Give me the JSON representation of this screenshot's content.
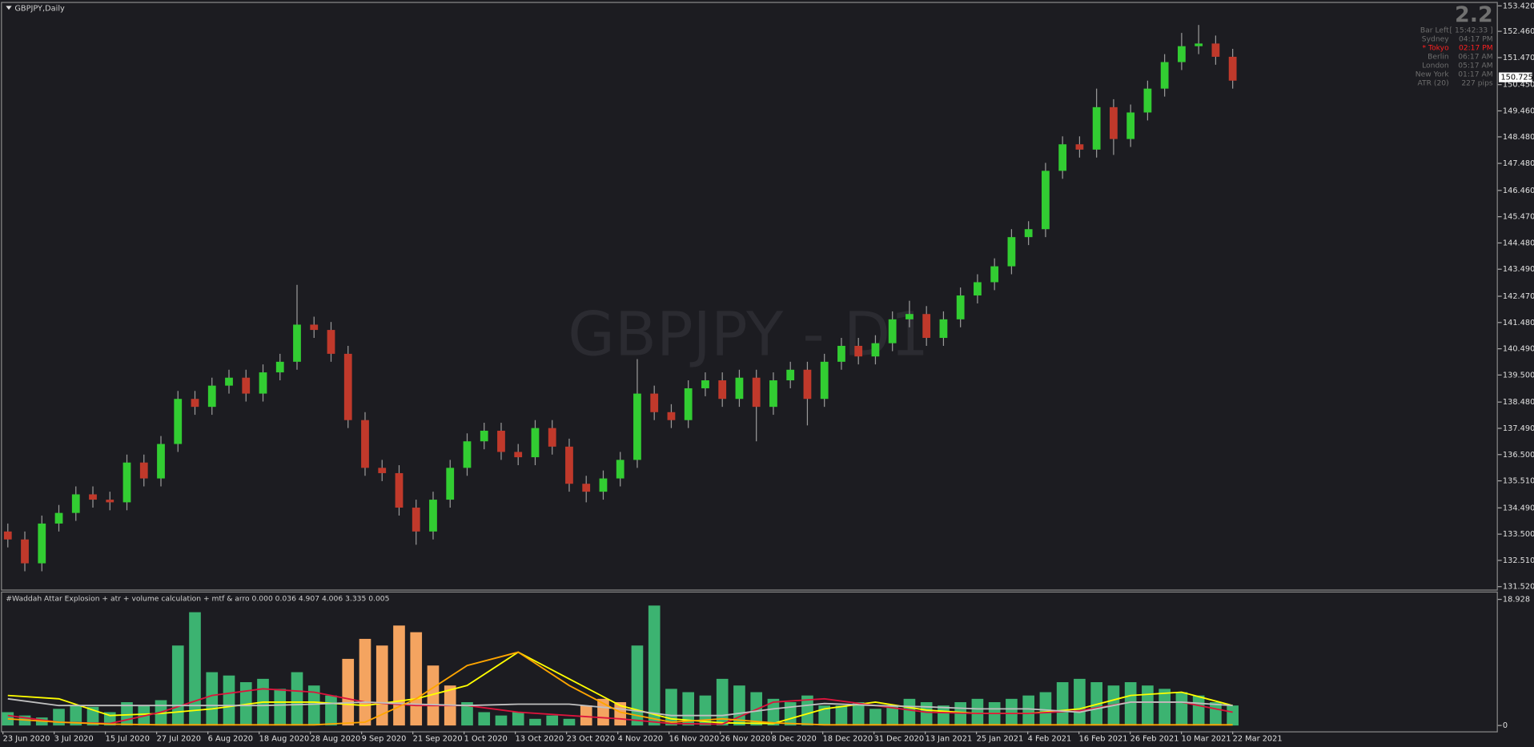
{
  "chart_data": [
    {
      "type": "candlestick",
      "title": "GBPJPY,Daily",
      "watermark": "GBPJPY - D1",
      "up_color": "#32cd32",
      "down_color": "#c0392b",
      "ylim": [
        131.52,
        153.42
      ],
      "yticks": [
        {
          "value": 153.42,
          "label": "153.420"
        },
        {
          "value": 152.46,
          "label": "152.460"
        },
        {
          "value": 151.47,
          "label": "151.470"
        },
        {
          "value": 150.45,
          "label": "150.450"
        },
        {
          "value": 149.46,
          "label": "149.460"
        },
        {
          "value": 148.48,
          "label": "148.480"
        },
        {
          "value": 147.48,
          "label": "147.480"
        },
        {
          "value": 146.46,
          "label": "146.460"
        },
        {
          "value": 145.47,
          "label": "145.470"
        },
        {
          "value": 144.48,
          "label": "144.480"
        },
        {
          "value": 143.49,
          "label": "143.490"
        },
        {
          "value": 142.47,
          "label": "142.470"
        },
        {
          "value": 141.48,
          "label": "141.480"
        },
        {
          "value": 140.49,
          "label": "140.490"
        },
        {
          "value": 139.5,
          "label": "139.500"
        },
        {
          "value": 138.48,
          "label": "138.480"
        },
        {
          "value": 137.49,
          "label": "137.490"
        },
        {
          "value": 136.5,
          "label": "136.500"
        },
        {
          "value": 135.51,
          "label": "135.510"
        },
        {
          "value": 134.49,
          "label": "134.490"
        },
        {
          "value": 133.5,
          "label": "133.500"
        },
        {
          "value": 132.51,
          "label": "132.510"
        },
        {
          "value": 131.52,
          "label": "131.520"
        }
      ],
      "current_price": 150.725,
      "x_labels": [
        "23 Jun 2020",
        "3 Jul 2020",
        "15 Jul 2020",
        "27 Jul 2020",
        "6 Aug 2020",
        "18 Aug 2020",
        "28 Aug 2020",
        "9 Sep 2020",
        "21 Sep 2020",
        "1 Oct 2020",
        "13 Oct 2020",
        "23 Oct 2020",
        "4 Nov 2020",
        "16 Nov 2020",
        "26 Nov 2020",
        "8 Dec 2020",
        "18 Dec 2020",
        "31 Dec 2020",
        "13 Jan 2021",
        "25 Jan 2021",
        "4 Feb 2021",
        "16 Feb 2021",
        "26 Feb 2021",
        "10 Mar 2021",
        "22 Mar 2021"
      ],
      "open": [
        133.6,
        133.3,
        132.4,
        133.9,
        134.3,
        135.0,
        134.8,
        134.7,
        136.2,
        135.6,
        136.9,
        138.6,
        138.3,
        139.1,
        139.4,
        138.8,
        139.6,
        140.0,
        141.4,
        141.2,
        140.3,
        137.8,
        136.0,
        135.8,
        134.5,
        133.6,
        134.8,
        136.0,
        137.0,
        137.4,
        136.6,
        136.4,
        137.5,
        136.8,
        135.4,
        135.1,
        135.6,
        136.3,
        138.8,
        138.1,
        137.8,
        139.0,
        139.3,
        138.6,
        139.4,
        138.3,
        139.3,
        139.7,
        138.6,
        140.0,
        140.6,
        140.2,
        140.7,
        141.6,
        141.8,
        140.9,
        141.6,
        142.5,
        143.0,
        143.6,
        144.7,
        145.0,
        147.2,
        148.2,
        148.0,
        149.6,
        148.4,
        149.4,
        150.3,
        151.3,
        151.9,
        152.0,
        151.5
      ],
      "high": [
        133.9,
        133.6,
        134.2,
        134.6,
        135.3,
        135.3,
        135.1,
        136.5,
        136.5,
        137.2,
        138.9,
        138.9,
        139.4,
        139.7,
        139.7,
        139.9,
        140.3,
        142.9,
        141.7,
        141.5,
        140.6,
        138.1,
        136.3,
        136.1,
        134.8,
        135.1,
        136.3,
        137.3,
        137.7,
        137.7,
        136.9,
        137.8,
        137.8,
        137.1,
        135.7,
        135.9,
        136.6,
        140.1,
        139.1,
        138.4,
        139.3,
        139.6,
        139.6,
        139.7,
        139.7,
        139.6,
        140.0,
        140.0,
        140.3,
        140.9,
        140.9,
        141.0,
        141.9,
        142.3,
        142.1,
        141.9,
        142.8,
        143.3,
        143.9,
        145.0,
        145.3,
        147.5,
        148.5,
        148.5,
        150.3,
        149.9,
        149.7,
        150.6,
        151.6,
        152.4,
        152.7,
        152.3,
        151.8
      ],
      "low": [
        133.0,
        132.1,
        132.1,
        133.6,
        134.0,
        134.5,
        134.4,
        134.4,
        135.3,
        135.3,
        136.6,
        138.0,
        138.0,
        138.8,
        138.5,
        138.5,
        139.3,
        139.7,
        140.9,
        140.0,
        137.5,
        135.7,
        135.5,
        134.2,
        133.1,
        133.3,
        134.5,
        135.7,
        136.7,
        136.3,
        136.1,
        136.1,
        136.5,
        135.1,
        134.7,
        134.8,
        135.3,
        136.0,
        137.8,
        137.5,
        137.5,
        138.7,
        138.3,
        138.3,
        137.0,
        138.0,
        139.0,
        137.6,
        138.3,
        139.7,
        139.9,
        139.9,
        140.4,
        141.3,
        140.6,
        140.6,
        141.3,
        142.2,
        142.7,
        143.3,
        144.4,
        144.7,
        146.9,
        147.7,
        147.7,
        147.8,
        148.1,
        149.1,
        150.0,
        151.0,
        151.6,
        151.2,
        150.3
      ],
      "close": [
        133.3,
        132.4,
        133.9,
        134.3,
        135.0,
        134.8,
        134.7,
        136.2,
        135.6,
        136.9,
        138.6,
        138.3,
        139.1,
        139.4,
        138.8,
        139.6,
        140.0,
        141.4,
        141.2,
        140.3,
        137.8,
        136.0,
        135.8,
        134.5,
        133.6,
        134.8,
        136.0,
        137.0,
        137.4,
        136.6,
        136.4,
        137.5,
        136.8,
        135.4,
        135.1,
        135.6,
        136.3,
        138.8,
        138.1,
        137.8,
        139.0,
        139.3,
        138.6,
        139.4,
        138.3,
        139.3,
        139.7,
        138.6,
        140.0,
        140.6,
        140.2,
        140.7,
        141.6,
        141.8,
        140.9,
        141.6,
        142.5,
        143.0,
        143.6,
        144.7,
        145.0,
        147.2,
        148.2,
        148.0,
        149.6,
        148.4,
        149.4,
        150.3,
        151.3,
        151.9,
        152.0,
        151.5,
        150.6
      ]
    },
    {
      "type": "indicator",
      "title": "#Waddah Attar Explosion + atr + volume calculation + mtf & arro 0.000 0.036 4.907 4.006 3.335 0.005",
      "ylim": [
        0,
        18.928
      ],
      "yticks": [
        18.928,
        0
      ],
      "series": [
        {
          "kind": "histogram",
          "color": "#3cb371",
          "values": [
            2.0,
            1.5,
            1.2,
            2.5,
            3.0,
            2.8,
            2.0,
            3.5,
            3.0,
            3.8,
            12.0,
            17.0,
            8.0,
            7.5,
            6.5,
            7.0,
            5.5,
            8.0,
            6.0,
            4.5,
            null,
            null,
            null,
            null,
            null,
            null,
            null,
            3.5,
            2.0,
            1.5,
            2.0,
            1.0,
            1.5,
            1.0,
            null,
            null,
            null,
            12.0,
            18.0,
            5.5,
            5.0,
            4.5,
            7.0,
            6.0,
            5.0,
            4.0,
            3.5,
            4.5,
            3.0,
            3.0,
            3.5,
            2.5,
            3.0,
            4.0,
            3.5,
            3.0,
            3.5,
            4.0,
            3.5,
            4.0,
            4.5,
            5.0,
            6.5,
            7.0,
            6.5,
            6.0,
            6.5,
            6.0,
            5.5,
            5.0,
            4.5,
            3.5,
            3.0
          ]
        },
        {
          "kind": "histogram",
          "color": "#f4a460",
          "values": [
            null,
            null,
            null,
            null,
            null,
            null,
            null,
            null,
            null,
            null,
            null,
            null,
            null,
            null,
            null,
            null,
            null,
            null,
            null,
            null,
            10.0,
            13.0,
            12.0,
            15.0,
            14.0,
            9.0,
            6.0,
            null,
            null,
            null,
            null,
            null,
            null,
            null,
            3.0,
            4.0,
            3.5,
            null,
            null,
            null,
            null,
            null,
            null,
            null,
            null,
            null,
            null,
            null,
            null,
            null,
            null,
            null,
            null,
            null,
            null,
            null,
            null,
            null,
            null,
            null,
            null,
            null,
            null,
            null,
            null,
            null,
            null,
            null,
            null,
            null,
            null,
            null,
            null
          ]
        },
        {
          "kind": "line",
          "color": "#ffff00",
          "values": [
            4.5,
            4.0,
            1.5,
            1.8,
            2.5,
            3.5,
            3.5,
            3.0,
            4.0,
            6.0,
            11.0,
            7.0,
            3.0,
            1.0,
            0.4,
            0.3,
            2.5,
            3.5,
            2.3,
            1.8,
            1.8,
            2.5,
            4.5,
            5.0,
            3.0
          ]
        },
        {
          "kind": "line",
          "color": "#dc143c",
          "values": [
            1.5,
            0.5,
            0.3,
            2.0,
            4.5,
            5.5,
            5.0,
            3.5,
            3.0,
            3.0,
            2.0,
            1.5,
            1.0,
            0.3,
            0.2,
            3.5,
            4.0,
            3.0,
            2.0,
            1.8,
            1.8,
            2.2,
            3.5,
            3.5,
            2.0
          ]
        },
        {
          "kind": "line",
          "color": "#c0c0c0",
          "values": [
            4.0,
            3.0,
            3.0,
            3.0,
            3.0,
            3.0,
            3.2,
            3.5,
            3.2,
            3.0,
            3.2,
            3.2,
            2.5,
            1.5,
            1.5,
            2.5,
            3.3,
            3.0,
            2.8,
            2.5,
            2.5,
            2.0,
            3.5,
            3.5,
            3.0
          ]
        },
        {
          "kind": "line",
          "color": "#ffa500",
          "values": [
            1.0,
            0.5,
            0.2,
            0.1,
            0.1,
            0.1,
            0.1,
            0.5,
            4.0,
            9.0,
            11.0,
            6.0,
            2.0,
            0.5,
            1.0,
            0.4,
            0.1,
            0.1,
            0.1,
            0.1,
            0.1,
            0.1,
            0.1,
            0.1,
            0.1
          ]
        }
      ]
    }
  ],
  "info_panel": {
    "spread": "2.2",
    "rows": [
      {
        "label": "Bar Left",
        "value": "[ 15:42:33 ]",
        "color": "#6e6e6e"
      },
      {
        "label": "Sydney",
        "value": "04:17 PM",
        "color": "#6e6e6e"
      },
      {
        "label": "* Tokyo",
        "value": "02:17 PM",
        "color": "#ff2020"
      },
      {
        "label": "Berlin",
        "value": "06:17 AM",
        "color": "#6e6e6e"
      },
      {
        "label": "London",
        "value": "05:17 AM",
        "color": "#6e6e6e"
      },
      {
        "label": "New York",
        "value": "01:17 AM",
        "color": "#6e6e6e"
      },
      {
        "label": "ATR (20)",
        "value": "227 pips",
        "color": "#6e6e6e"
      }
    ]
  }
}
